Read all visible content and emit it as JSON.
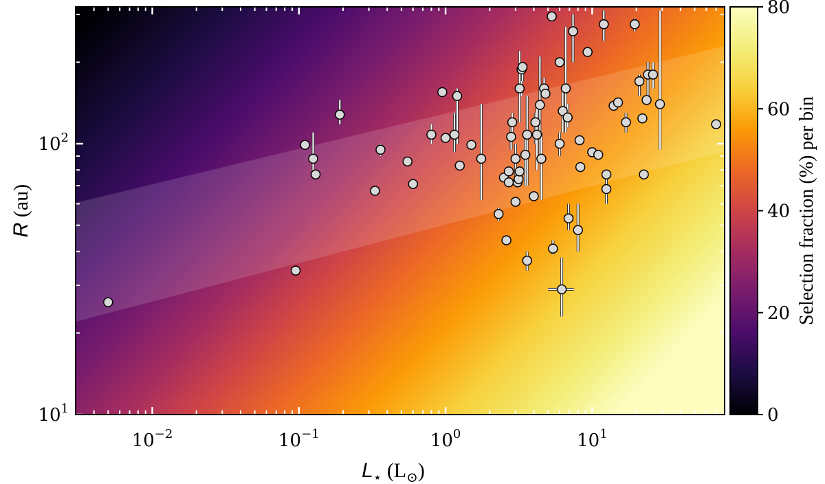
{
  "chart_data": {
    "type": "scatter",
    "title": "",
    "x_scale": "log",
    "y_scale": "log",
    "xlim": [
      0.003,
      80
    ],
    "ylim": [
      10,
      320
    ],
    "xlabel": {
      "symbol": "L",
      "subscript": "⋆",
      "unit": " (L",
      "unit_sub": "⊙",
      "close": ")"
    },
    "ylabel": {
      "symbol": "R",
      "unit": " (au)"
    },
    "x_ticks": [
      {
        "value": 0.01,
        "base": "10",
        "exp": "−2"
      },
      {
        "value": 0.1,
        "base": "10",
        "exp": "−1"
      },
      {
        "value": 1,
        "base": "10",
        "exp": "0"
      },
      {
        "value": 10,
        "base": "10",
        "exp": "1"
      }
    ],
    "y_ticks": [
      {
        "value": 10,
        "base": "10",
        "exp": "1"
      },
      {
        "value": 100,
        "base": "10",
        "exp": "2"
      }
    ],
    "colorbar": {
      "label": "Selection fraction (%) per bin",
      "range": [
        0,
        80
      ],
      "ticks": [
        "0",
        "20",
        "40",
        "60",
        "80"
      ],
      "colormap": "inferno-like",
      "colors": [
        "#000004",
        "#1b0c41",
        "#4a0c6b",
        "#781c6d",
        "#a52c60",
        "#cf4446",
        "#ed6925",
        "#fb9b06",
        "#f7d13d",
        "#f3ee7a",
        "#fcfdbf"
      ]
    },
    "band": {
      "color": "#ffffff",
      "opacity": 0.14
    },
    "marker": {
      "fill": "#d8d8d8",
      "edge": "#000000",
      "errbar": "#ffffff"
    },
    "points": [
      {
        "x": 0.005,
        "y": 26
      },
      {
        "x": 0.095,
        "y": 34
      },
      {
        "x": 0.11,
        "y": 99
      },
      {
        "x": 0.125,
        "y": 88,
        "ylo": 80,
        "yhi": 110
      },
      {
        "x": 0.13,
        "y": 77
      },
      {
        "x": 0.19,
        "y": 128,
        "ylo": 118,
        "yhi": 145
      },
      {
        "x": 0.33,
        "y": 67
      },
      {
        "x": 0.36,
        "y": 95,
        "ylo": 90,
        "yhi": 100
      },
      {
        "x": 0.55,
        "y": 86
      },
      {
        "x": 0.6,
        "y": 71
      },
      {
        "x": 0.8,
        "y": 108,
        "ylo": 100,
        "yhi": 118
      },
      {
        "x": 0.95,
        "y": 155
      },
      {
        "x": 1.0,
        "y": 105
      },
      {
        "x": 1.15,
        "y": 108,
        "ylo": 93,
        "yhi": 130
      },
      {
        "x": 1.2,
        "y": 150,
        "ylo": 100,
        "yhi": 160
      },
      {
        "x": 1.25,
        "y": 83
      },
      {
        "x": 1.5,
        "y": 99
      },
      {
        "x": 1.75,
        "y": 88,
        "ylo": 62,
        "yhi": 140
      },
      {
        "x": 2.3,
        "y": 55,
        "ylo": 52,
        "yhi": 58
      },
      {
        "x": 2.5,
        "y": 75
      },
      {
        "x": 2.6,
        "y": 44
      },
      {
        "x": 2.7,
        "y": 79
      },
      {
        "x": 2.7,
        "y": 72
      },
      {
        "x": 2.8,
        "y": 106,
        "ylo": 95,
        "yhi": 118
      },
      {
        "x": 2.85,
        "y": 120,
        "ylo": 110,
        "yhi": 130
      },
      {
        "x": 3.0,
        "y": 61
      },
      {
        "x": 3.0,
        "y": 88,
        "ylo": 75,
        "yhi": 100
      },
      {
        "x": 3.1,
        "y": 72
      },
      {
        "x": 3.15,
        "y": 74
      },
      {
        "x": 3.2,
        "y": 79
      },
      {
        "x": 3.2,
        "y": 160,
        "ylo": 120,
        "yhi": 220
      },
      {
        "x": 3.3,
        "y": 188,
        "ylo": 150,
        "yhi": 200
      },
      {
        "x": 3.35,
        "y": 192,
        "ylo": 170,
        "yhi": 200
      },
      {
        "x": 3.5,
        "y": 91,
        "ylo": 70,
        "yhi": 110
      },
      {
        "x": 3.6,
        "y": 37,
        "ylo": 34,
        "yhi": 40
      },
      {
        "x": 3.6,
        "y": 108,
        "ylo": 70,
        "yhi": 150
      },
      {
        "x": 4.0,
        "y": 64
      },
      {
        "x": 4.1,
        "y": 120,
        "ylo": 100,
        "yhi": 130
      },
      {
        "x": 4.2,
        "y": 108,
        "ylo": 80,
        "yhi": 140
      },
      {
        "x": 4.4,
        "y": 139,
        "ylo": 90,
        "yhi": 210
      },
      {
        "x": 4.5,
        "y": 88,
        "ylo": 62,
        "yhi": 110
      },
      {
        "x": 4.7,
        "y": 160,
        "ylo": 150,
        "yhi": 175
      },
      {
        "x": 4.8,
        "y": 153
      },
      {
        "x": 5.3,
        "y": 295
      },
      {
        "x": 5.4,
        "y": 41,
        "ylo": 39,
        "yhi": 44
      },
      {
        "x": 6.0,
        "y": 200
      },
      {
        "x": 6.0,
        "y": 100,
        "ylo": 90,
        "yhi": 110
      },
      {
        "x": 6.2,
        "y": 29,
        "ylo": 23,
        "yhi": 38,
        "xlo": 5.0,
        "xhi": 7.5
      },
      {
        "x": 6.3,
        "y": 132,
        "ylo": 110,
        "yhi": 155
      },
      {
        "x": 6.6,
        "y": 160,
        "ylo": 110,
        "yhi": 270
      },
      {
        "x": 6.9,
        "y": 53,
        "ylo": 48,
        "yhi": 60
      },
      {
        "x": 6.8,
        "y": 125,
        "ylo": 115,
        "yhi": 140
      },
      {
        "x": 7.4,
        "y": 260,
        "ylo": 200,
        "yhi": 300
      },
      {
        "x": 8.0,
        "y": 48,
        "ylo": 40,
        "yhi": 60
      },
      {
        "x": 8.2,
        "y": 103
      },
      {
        "x": 8.3,
        "y": 82
      },
      {
        "x": 9.3,
        "y": 218
      },
      {
        "x": 10.0,
        "y": 93
      },
      {
        "x": 11.0,
        "y": 91
      },
      {
        "x": 12.0,
        "y": 276,
        "ylo": 240,
        "yhi": 310
      },
      {
        "x": 12.5,
        "y": 77
      },
      {
        "x": 12.5,
        "y": 68,
        "ylo": 60,
        "yhi": 76
      },
      {
        "x": 14.0,
        "y": 138
      },
      {
        "x": 15.0,
        "y": 142
      },
      {
        "x": 17.0,
        "y": 120,
        "ylo": 110,
        "yhi": 130
      },
      {
        "x": 19.5,
        "y": 276,
        "ylo": 260,
        "yhi": 290
      },
      {
        "x": 21.0,
        "y": 170,
        "ylo": 150,
        "yhi": 180
      },
      {
        "x": 22.0,
        "y": 124
      },
      {
        "x": 22.5,
        "y": 77
      },
      {
        "x": 23.5,
        "y": 145
      },
      {
        "x": 24.0,
        "y": 180,
        "ylo": 150,
        "yhi": 200
      },
      {
        "x": 26.0,
        "y": 180,
        "ylo": 160,
        "yhi": 200
      },
      {
        "x": 29.0,
        "y": 140,
        "ylo": 95,
        "yhi": 310
      },
      {
        "x": 70.0,
        "y": 118
      }
    ]
  }
}
